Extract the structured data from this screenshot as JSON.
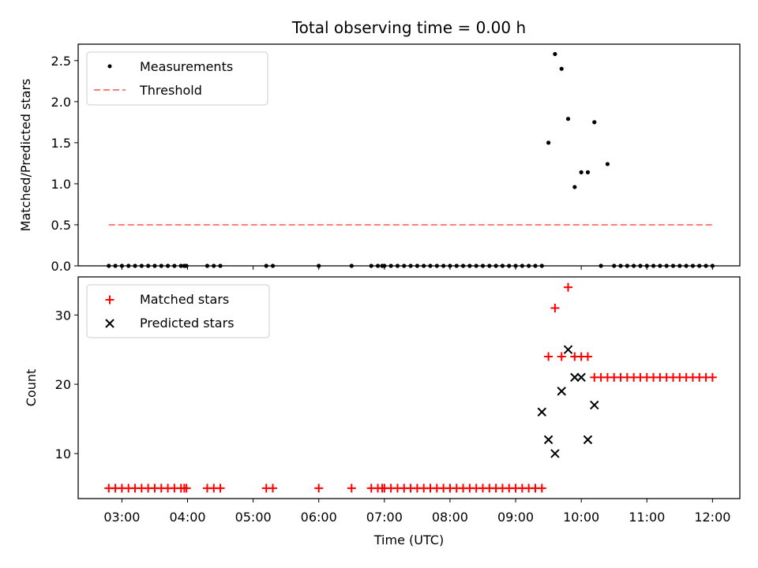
{
  "chart_data": [
    {
      "type": "scatter",
      "title": "Total observing time = 0.00 h",
      "xlabel": "",
      "ylabel": "Matched/Predicted stars",
      "xlim": [
        "02:20",
        "12:25"
      ],
      "ylim": [
        0,
        2.7
      ],
      "x_ticks": [
        "03:00",
        "04:00",
        "05:00",
        "06:00",
        "07:00",
        "08:00",
        "09:00",
        "10:00",
        "11:00",
        "12:00"
      ],
      "y_ticks": [
        "0.0",
        "0.5",
        "1.0",
        "1.5",
        "2.0",
        "2.5"
      ],
      "legend_position": "top-left",
      "series": [
        {
          "name": "Measurements",
          "style": "dot",
          "color": "#000000",
          "x": [
            "02:48",
            "02:54",
            "03:00",
            "03:06",
            "03:12",
            "03:18",
            "03:24",
            "03:30",
            "03:36",
            "03:42",
            "03:48",
            "03:54",
            "03:57",
            "03:59",
            "04:18",
            "04:24",
            "04:30",
            "05:12",
            "05:18",
            "06:00",
            "06:30",
            "06:48",
            "06:54",
            "06:58",
            "07:00",
            "07:06",
            "07:12",
            "07:18",
            "07:24",
            "07:30",
            "07:36",
            "07:42",
            "07:48",
            "07:54",
            "08:00",
            "08:06",
            "08:12",
            "08:18",
            "08:24",
            "08:30",
            "08:36",
            "08:42",
            "08:48",
            "08:54",
            "09:00",
            "09:06",
            "09:12",
            "09:18",
            "09:24",
            "09:30",
            "09:36",
            "09:42",
            "09:48",
            "09:54",
            "10:00",
            "10:06",
            "10:12",
            "10:18",
            "10:24",
            "10:30",
            "10:36",
            "10:42",
            "10:48",
            "10:54",
            "11:00",
            "11:06",
            "11:12",
            "11:18",
            "11:24",
            "11:30",
            "11:36",
            "11:42",
            "11:48",
            "11:54",
            "12:00"
          ],
          "y": [
            0,
            0,
            0,
            0,
            0,
            0,
            0,
            0,
            0,
            0,
            0,
            0,
            0,
            0,
            0,
            0,
            0,
            0,
            0,
            0,
            0,
            0,
            0,
            0,
            0,
            0,
            0,
            0,
            0,
            0,
            0,
            0,
            0,
            0,
            0,
            0,
            0,
            0,
            0,
            0,
            0,
            0,
            0,
            0,
            0,
            0,
            0,
            0,
            0,
            1.5,
            2.58,
            2.4,
            1.79,
            0.96,
            1.14,
            1.14,
            1.75,
            0,
            1.24,
            0,
            0,
            0,
            0,
            0,
            0,
            0,
            0,
            0,
            0,
            0,
            0,
            0,
            0,
            0,
            0
          ]
        },
        {
          "name": "Threshold",
          "style": "dashed-line",
          "color": "#ff7f7f",
          "x": [
            "02:48",
            "12:00"
          ],
          "y": [
            0.5,
            0.5
          ]
        }
      ]
    },
    {
      "type": "scatter",
      "title": "",
      "xlabel": "Time (UTC)",
      "ylabel": "Count",
      "xlim": [
        "02:20",
        "12:25"
      ],
      "ylim": [
        3.5,
        35.5
      ],
      "x_ticks": [
        "03:00",
        "04:00",
        "05:00",
        "06:00",
        "07:00",
        "08:00",
        "09:00",
        "10:00",
        "11:00",
        "12:00"
      ],
      "y_ticks": [
        "10",
        "20",
        "30"
      ],
      "legend_position": "top-left",
      "series": [
        {
          "name": "Matched stars",
          "style": "plus",
          "color": "#ff0000",
          "x": [
            "02:48",
            "02:54",
            "03:00",
            "03:06",
            "03:12",
            "03:18",
            "03:24",
            "03:30",
            "03:36",
            "03:42",
            "03:48",
            "03:54",
            "03:57",
            "03:59",
            "04:18",
            "04:24",
            "04:30",
            "05:12",
            "05:18",
            "06:00",
            "06:30",
            "06:48",
            "06:54",
            "06:58",
            "07:00",
            "07:06",
            "07:12",
            "07:18",
            "07:24",
            "07:30",
            "07:36",
            "07:42",
            "07:48",
            "07:54",
            "08:00",
            "08:06",
            "08:12",
            "08:18",
            "08:24",
            "08:30",
            "08:36",
            "08:42",
            "08:48",
            "08:54",
            "09:00",
            "09:06",
            "09:12",
            "09:18",
            "09:24",
            "09:30",
            "09:36",
            "09:42",
            "09:48",
            "09:54",
            "10:00",
            "10:06",
            "10:12",
            "10:18",
            "10:24",
            "10:30",
            "10:36",
            "10:42",
            "10:48",
            "10:54",
            "11:00",
            "11:06",
            "11:12",
            "11:18",
            "11:24",
            "11:30",
            "11:36",
            "11:42",
            "11:48",
            "11:54",
            "12:00"
          ],
          "y": [
            5,
            5,
            5,
            5,
            5,
            5,
            5,
            5,
            5,
            5,
            5,
            5,
            5,
            5,
            5,
            5,
            5,
            5,
            5,
            5,
            5,
            5,
            5,
            5,
            5,
            5,
            5,
            5,
            5,
            5,
            5,
            5,
            5,
            5,
            5,
            5,
            5,
            5,
            5,
            5,
            5,
            5,
            5,
            5,
            5,
            5,
            5,
            5,
            5,
            24,
            31,
            24,
            34,
            24,
            24,
            24,
            21,
            21,
            21,
            21,
            21,
            21,
            21,
            21,
            21,
            21,
            21,
            21,
            21,
            21,
            21,
            21,
            21,
            21,
            21
          ]
        },
        {
          "name": "Predicted stars",
          "style": "cross",
          "color": "#000000",
          "x": [
            "09:24",
            "09:30",
            "09:36",
            "09:42",
            "09:48",
            "09:54",
            "10:00",
            "10:06",
            "10:12"
          ],
          "y": [
            16,
            12,
            10,
            19,
            25,
            21,
            21,
            12,
            17
          ]
        }
      ]
    }
  ]
}
